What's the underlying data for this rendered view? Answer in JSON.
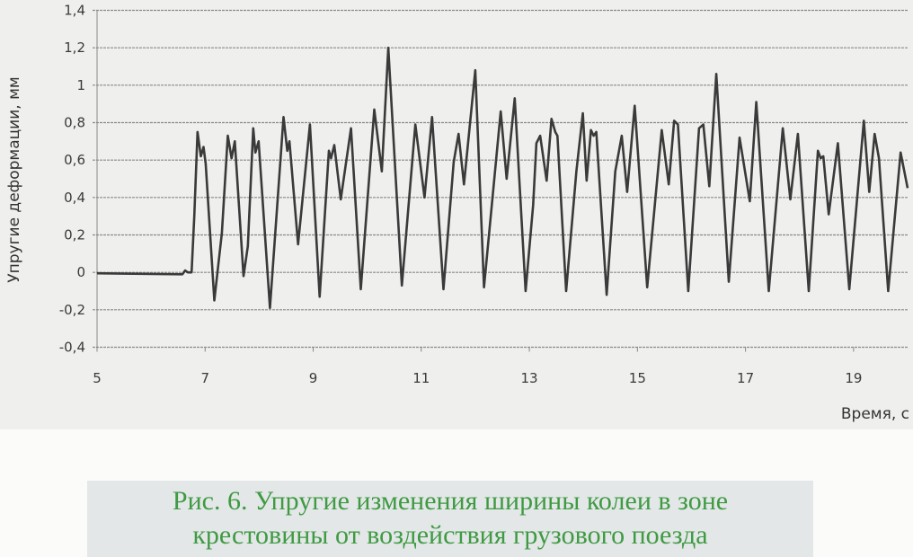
{
  "chart_data": {
    "type": "line",
    "title": "",
    "xlabel": "Время, с",
    "ylabel": "Упругие деформации, мм",
    "xlim": [
      5,
      20
    ],
    "ylim": [
      -0.4,
      1.4
    ],
    "x_ticks": [
      "5",
      "7",
      "9",
      "11",
      "13",
      "15",
      "17",
      "19"
    ],
    "x_tick_values": [
      5,
      7,
      9,
      11,
      13,
      15,
      17,
      19
    ],
    "y_ticks": [
      "1,4",
      "1,2",
      "1",
      "0,8",
      "0,6",
      "0,4",
      "0,2",
      "0",
      "-0,2",
      "-0,4"
    ],
    "y_tick_values": [
      1.4,
      1.2,
      1.0,
      0.8,
      0.6,
      0.4,
      0.2,
      0,
      -0.2,
      -0.4
    ],
    "grid": true,
    "line_color": "#3a3a3a",
    "series": [
      {
        "x": [
          5.0,
          6.58,
          6.63,
          6.68,
          6.75,
          6.8,
          6.86,
          6.92,
          6.97,
          7.01,
          7.17,
          7.31,
          7.42,
          7.49,
          7.55,
          7.71,
          7.79,
          7.89,
          7.93,
          7.99,
          8.2,
          8.45,
          8.52,
          8.56,
          8.72,
          8.94,
          9.12,
          9.29,
          9.33,
          9.39,
          9.51,
          9.7,
          9.88,
          10.13,
          10.27,
          10.39,
          10.64,
          10.89,
          11.06,
          11.2,
          11.41,
          11.6,
          11.69,
          11.79,
          12.0,
          12.16,
          12.47,
          12.58,
          12.73,
          12.93,
          13.07,
          13.13,
          13.2,
          13.32,
          13.41,
          13.48,
          13.52,
          13.68,
          13.87,
          13.99,
          14.06,
          14.14,
          14.19,
          14.24,
          14.43,
          14.59,
          14.71,
          14.81,
          14.95,
          15.18,
          15.45,
          15.58,
          15.68,
          15.75,
          15.94,
          16.14,
          16.22,
          16.33,
          16.46,
          16.69,
          16.89,
          17.08,
          17.2,
          17.43,
          17.69,
          17.83,
          17.97,
          18.17,
          18.34,
          18.39,
          18.44,
          18.54,
          18.71,
          18.92,
          19.19,
          19.29,
          19.39,
          19.47,
          19.64,
          19.87,
          20.0
        ],
        "y": [
          -0.005,
          -0.01,
          0.01,
          0.0,
          0.0,
          0.3,
          0.75,
          0.62,
          0.67,
          0.58,
          -0.15,
          0.21,
          0.73,
          0.61,
          0.7,
          -0.02,
          0.14,
          0.77,
          0.64,
          0.7,
          -0.19,
          0.83,
          0.65,
          0.7,
          0.15,
          0.79,
          -0.13,
          0.65,
          0.61,
          0.68,
          0.39,
          0.77,
          -0.09,
          0.87,
          0.54,
          1.2,
          -0.07,
          0.79,
          0.4,
          0.83,
          -0.09,
          0.59,
          0.74,
          0.47,
          1.08,
          -0.08,
          0.86,
          0.5,
          0.93,
          -0.1,
          0.36,
          0.69,
          0.73,
          0.49,
          0.82,
          0.75,
          0.73,
          -0.1,
          0.54,
          0.85,
          0.49,
          0.76,
          0.73,
          0.75,
          -0.12,
          0.54,
          0.73,
          0.43,
          0.89,
          -0.08,
          0.76,
          0.47,
          0.81,
          0.79,
          -0.1,
          0.77,
          0.79,
          0.46,
          1.06,
          -0.05,
          0.72,
          0.38,
          0.91,
          -0.1,
          0.77,
          0.39,
          0.74,
          -0.1,
          0.65,
          0.61,
          0.62,
          0.31,
          0.69,
          -0.09,
          0.81,
          0.43,
          0.74,
          0.61,
          -0.1,
          0.64,
          0.45
        ]
      }
    ]
  },
  "caption": {
    "line1": "Рис. 6. Упругие изменения ширины колеи в зоне",
    "line2": "крестовины от воздействия грузового поезда"
  }
}
